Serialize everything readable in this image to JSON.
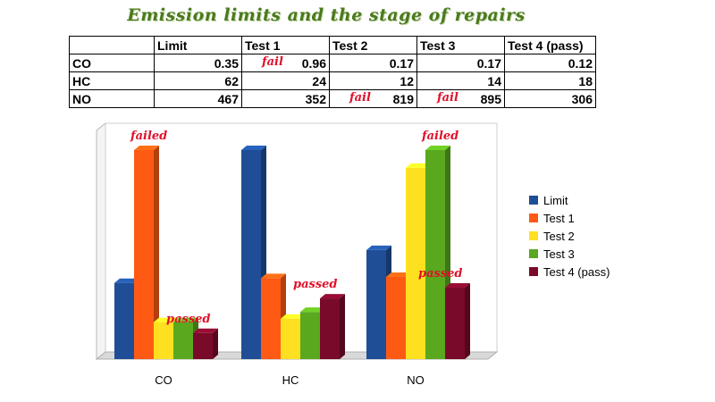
{
  "title": "Emission limits and the stage of repairs",
  "table": {
    "columns": [
      "",
      "Limit",
      "Test 1",
      "Test 2",
      "Test 3",
      "Test 4 (pass)"
    ],
    "rows": [
      {
        "label": "CO",
        "cells": [
          "0.35",
          "0.96",
          "0.17",
          "0.17",
          "0.12"
        ],
        "fail": [
          false,
          true,
          false,
          false,
          false
        ]
      },
      {
        "label": "HC",
        "cells": [
          "62",
          "24",
          "12",
          "14",
          "18"
        ],
        "fail": [
          false,
          false,
          false,
          false,
          false
        ]
      },
      {
        "label": "NO",
        "cells": [
          "467",
          "352",
          "819",
          "895",
          "306"
        ],
        "fail": [
          false,
          false,
          true,
          true,
          false
        ]
      }
    ],
    "fail_text": "fail"
  },
  "chart_data": {
    "type": "bar",
    "categories": [
      "CO",
      "HC",
      "NO"
    ],
    "series": [
      {
        "name": "Limit",
        "color": "#1f4e96",
        "values": [
          0.35,
          62,
          467
        ]
      },
      {
        "name": "Test 1",
        "color": "#ff5a14",
        "values": [
          0.96,
          24,
          352
        ]
      },
      {
        "name": "Test 2",
        "color": "#ffe020",
        "values": [
          0.17,
          12,
          819
        ]
      },
      {
        "name": "Test 3",
        "color": "#5aa81e",
        "values": [
          0.17,
          14,
          895
        ]
      },
      {
        "name": "Test 4 (pass)",
        "color": "#7a0a2a",
        "values": [
          0.12,
          18,
          306
        ]
      }
    ],
    "annotations": [
      {
        "text": "failed",
        "category": "CO",
        "series": "Test 1"
      },
      {
        "text": "passed",
        "category": "CO",
        "series": "Test 4 (pass)"
      },
      {
        "text": "passed",
        "category": "HC",
        "series": "Test 4 (pass)"
      },
      {
        "text": "failed",
        "category": "NO",
        "series": "Test 3"
      },
      {
        "text": "passed",
        "category": "NO",
        "series": "Test 4 (pass)"
      }
    ],
    "legend_position": "right",
    "grid": false
  }
}
